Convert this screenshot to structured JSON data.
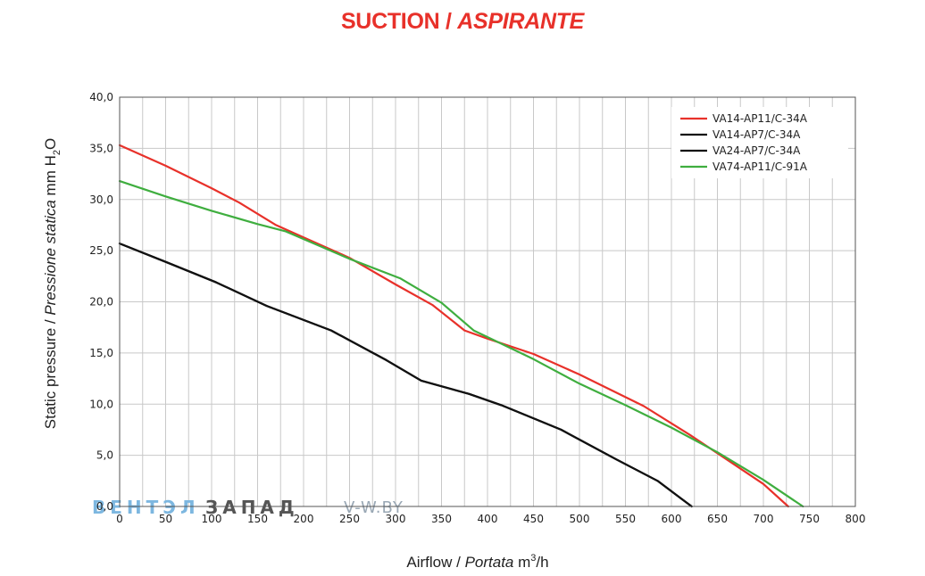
{
  "header": {
    "title_main": "SUCTION /",
    "title_italic": "ASPIRANTE",
    "title_color": "#e8312a"
  },
  "watermark": {
    "part1": "ВЕНТЭЛ",
    "part2": "ЗАПАД",
    "part3": "V-W.BY",
    "color1": "#7db7e0",
    "color2": "#555555",
    "color3": "#9aa8b5"
  },
  "chart_data": {
    "type": "line",
    "title": "SUCTION / ASPIRANTE",
    "xlabel": {
      "normal": "Airflow",
      "italic": "Portata",
      "unit": "m",
      "sup": "3",
      "tail": "/h"
    },
    "ylabel": {
      "normal": "Static pressure",
      "italic": "Pressione statica",
      "unit": "mm  H",
      "sub": "2",
      "tail": "O"
    },
    "xlim": [
      0,
      800
    ],
    "ylim": [
      0,
      40
    ],
    "xticks": [
      0,
      50,
      100,
      150,
      200,
      250,
      300,
      350,
      400,
      450,
      500,
      550,
      600,
      650,
      700,
      750,
      800
    ],
    "yticks": [
      "0,0",
      "5,0",
      "10,0",
      "15,0",
      "20,0",
      "25,0",
      "30,0",
      "35,0",
      "40,0"
    ],
    "xgrid_minor": 25,
    "grid": true,
    "legend_position": "top-right",
    "series": [
      {
        "name": "VA14-AP11/C-34A",
        "color": "#e8312a",
        "points": [
          [
            0,
            35.3
          ],
          [
            50,
            33.3
          ],
          [
            100,
            31.1
          ],
          [
            130,
            29.7
          ],
          [
            170,
            27.5
          ],
          [
            200,
            26.3
          ],
          [
            250,
            24.3
          ],
          [
            300,
            21.7
          ],
          [
            340,
            19.7
          ],
          [
            375,
            17.2
          ],
          [
            400,
            16.4
          ],
          [
            450,
            14.9
          ],
          [
            500,
            12.9
          ],
          [
            570,
            9.8
          ],
          [
            620,
            7.0
          ],
          [
            660,
            4.6
          ],
          [
            700,
            2.2
          ],
          [
            727,
            0.0
          ]
        ]
      },
      {
        "name": "VA14-AP7/C-34A",
        "color": "#111111",
        "points": [
          [
            0,
            25.7
          ],
          [
            50,
            23.9
          ],
          [
            105,
            21.9
          ],
          [
            160,
            19.6
          ],
          [
            230,
            17.2
          ],
          [
            290,
            14.3
          ],
          [
            328,
            12.3
          ],
          [
            380,
            11.0
          ],
          [
            415,
            9.9
          ],
          [
            480,
            7.5
          ],
          [
            540,
            4.6
          ],
          [
            585,
            2.5
          ],
          [
            622,
            0.0
          ]
        ]
      },
      {
        "name": "VA24-AP7/C-34A",
        "color": "#111111",
        "points": [
          [
            0,
            25.7
          ],
          [
            50,
            23.9
          ],
          [
            105,
            21.9
          ],
          [
            160,
            19.6
          ],
          [
            230,
            17.2
          ],
          [
            290,
            14.3
          ],
          [
            328,
            12.3
          ],
          [
            380,
            11.0
          ],
          [
            415,
            9.9
          ],
          [
            480,
            7.5
          ],
          [
            540,
            4.6
          ],
          [
            585,
            2.5
          ],
          [
            622,
            0.0
          ]
        ]
      },
      {
        "name": "VA74-AP11/C-91A",
        "color": "#3fae3f",
        "points": [
          [
            0,
            31.8
          ],
          [
            50,
            30.3
          ],
          [
            100,
            28.9
          ],
          [
            150,
            27.6
          ],
          [
            180,
            26.9
          ],
          [
            250,
            24.2
          ],
          [
            305,
            22.3
          ],
          [
            350,
            19.9
          ],
          [
            385,
            17.2
          ],
          [
            450,
            14.4
          ],
          [
            500,
            12.0
          ],
          [
            550,
            9.9
          ],
          [
            600,
            7.7
          ],
          [
            650,
            5.3
          ],
          [
            700,
            2.6
          ],
          [
            743,
            0.0
          ]
        ]
      }
    ]
  }
}
